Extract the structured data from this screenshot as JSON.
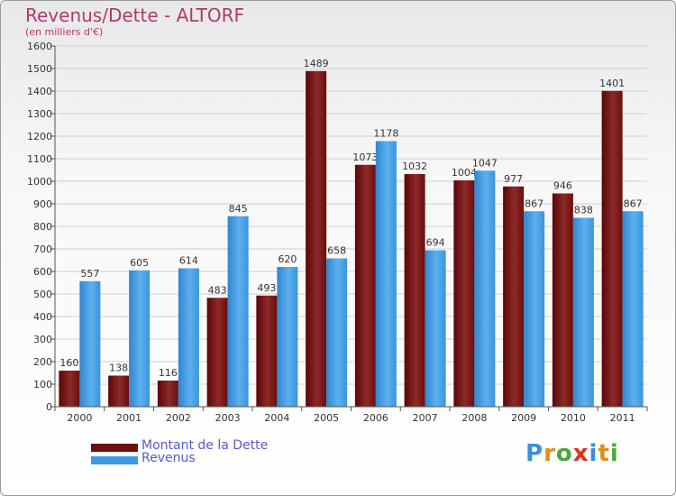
{
  "header": {
    "title": "Revenus/Dette - ALTORF",
    "subtitle": "(en milliers d'€)"
  },
  "chart_data": {
    "type": "bar",
    "title": "Revenus/Dette - ALTORF",
    "ylabel": "(en milliers d'€)",
    "xlabel": "",
    "ylim": [
      0,
      1600
    ],
    "yticks": [
      0,
      100,
      200,
      300,
      400,
      500,
      600,
      700,
      800,
      900,
      1000,
      1100,
      1200,
      1300,
      1400,
      1500,
      1600
    ],
    "grid": true,
    "legend": "bottom-left",
    "categories": [
      "2000",
      "2001",
      "2002",
      "2003",
      "2004",
      "2005",
      "2006",
      "2007",
      "2008",
      "2009",
      "2010",
      "2011"
    ],
    "series": [
      {
        "name": "Montant de la Dette",
        "color": "#7a1a1a",
        "values": [
          160,
          138,
          116,
          483,
          493,
          1489,
          1073,
          1032,
          1004,
          977,
          946,
          1401
        ]
      },
      {
        "name": "Revenus",
        "color": "#3a9ae0",
        "values": [
          557,
          605,
          614,
          845,
          620,
          658,
          1178,
          694,
          1047,
          867,
          838,
          867
        ]
      }
    ]
  },
  "legend": {
    "items": [
      {
        "label": "Montant de la Dette",
        "color": "#6b0f0f"
      },
      {
        "label": "Revenus",
        "color": "#3d9be3"
      }
    ]
  },
  "brand": {
    "letters": [
      "P",
      "r",
      "o",
      "x",
      "i",
      "t",
      "i"
    ],
    "colors": [
      "#3a8fd8",
      "#e0901a",
      "#4aa83a",
      "#e0301a",
      "#3a8fd8",
      "#e0901a",
      "#4aa83a"
    ]
  }
}
